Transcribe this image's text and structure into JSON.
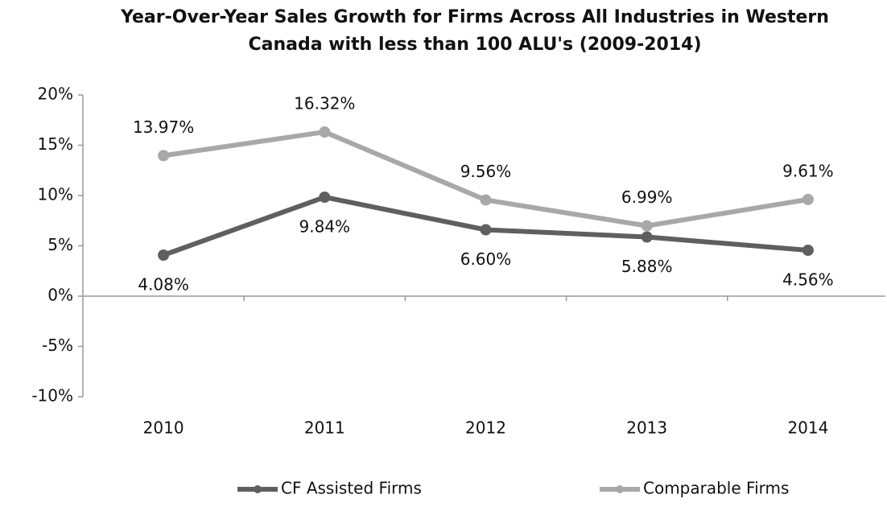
{
  "chart_data": {
    "type": "line",
    "title": "Year-Over-Year Sales Growth for Firms Across All Industries in Western",
    "subtitle": "Canada with less than 100 ALU's (2009-2014)",
    "categories": [
      "2010",
      "2011",
      "2012",
      "2013",
      "2014"
    ],
    "series": [
      {
        "name": "CF Assisted Firms",
        "color": "#5f5f5f",
        "values": [
          4.08,
          9.84,
          6.6,
          5.88,
          4.56
        ],
        "value_labels": [
          "4.08%",
          "9.84%",
          "6.60%",
          "5.88%",
          "4.56%"
        ]
      },
      {
        "name": "Comparable Firms",
        "color": "#a8a8a8",
        "values": [
          13.97,
          16.32,
          9.56,
          6.99,
          9.61
        ],
        "value_labels": [
          "13.97%",
          "16.32%",
          "9.56%",
          "6.99%",
          "9.61%"
        ]
      }
    ],
    "ylim": [
      -10,
      20
    ],
    "yticks": [
      {
        "value": -10,
        "label": "-10%"
      },
      {
        "value": -5,
        "label": "-5%"
      },
      {
        "value": 0,
        "label": "0%"
      },
      {
        "value": 5,
        "label": "5%"
      },
      {
        "value": 10,
        "label": "10%"
      },
      {
        "value": 15,
        "label": "15%"
      },
      {
        "value": 20,
        "label": "20%"
      }
    ],
    "grid": false,
    "legend": "bottom"
  }
}
